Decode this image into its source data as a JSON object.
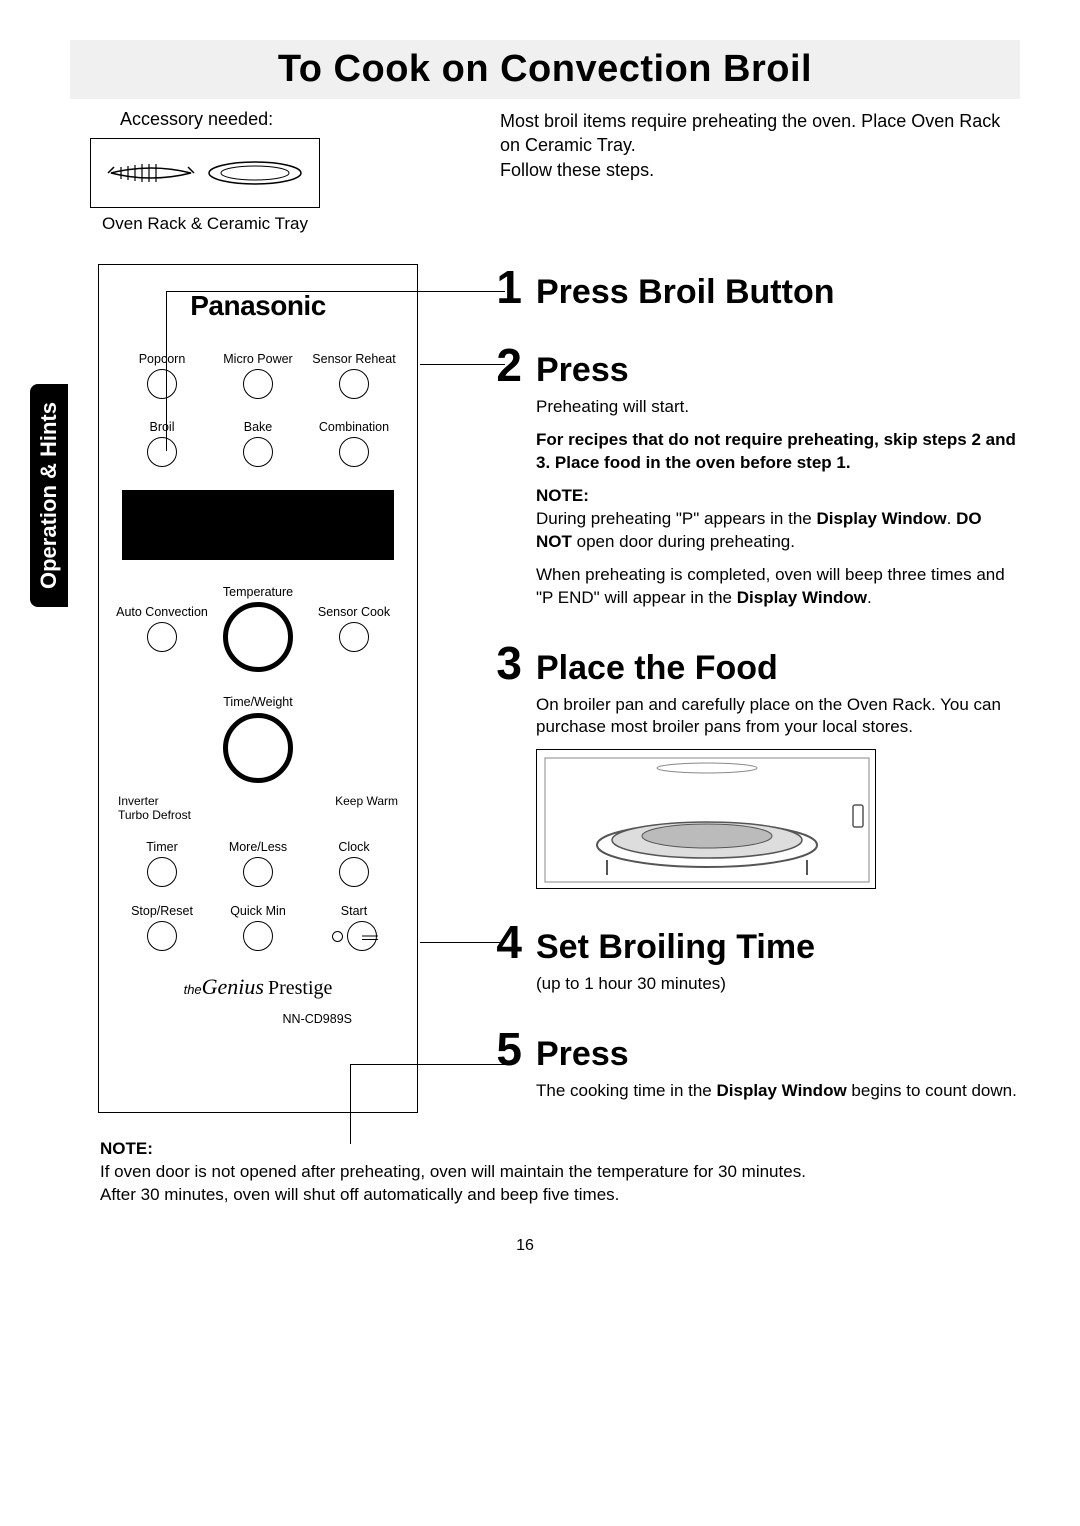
{
  "title": "To Cook on Convection Broil",
  "accessory": {
    "label": "Accessory needed:",
    "caption": "Oven Rack & Ceramic Tray"
  },
  "intro": "Most broil items require preheating the oven. Place Oven Rack on Ceramic Tray.\nFollow these steps.",
  "side_tab": "Operation & Hints",
  "panel": {
    "brand": "Panasonic",
    "buttons_row1": [
      "Popcorn",
      "Micro Power",
      "Sensor Reheat"
    ],
    "buttons_row2": [
      "Broil",
      "Bake",
      "Combination"
    ],
    "dial_row": [
      "Auto Convection",
      "Temperature",
      "Sensor Cook"
    ],
    "tw_label": "Time/Weight",
    "side_left_top": "Inverter",
    "side_left_bottom": "Turbo Defrost",
    "side_right": "Keep Warm",
    "buttons_row3": [
      "Timer",
      "More/Less",
      "Clock"
    ],
    "buttons_row4": [
      "Stop/Reset",
      "Quick Min",
      "Start"
    ],
    "sub_the": "the",
    "sub_genius": "Genius",
    "sub_prestige": "Prestige",
    "model": "NN-CD989S"
  },
  "steps": [
    {
      "num": "1",
      "title": "Press Broil Button",
      "body": []
    },
    {
      "num": "2",
      "title": "Press",
      "body": [
        {
          "text": "Preheating will start."
        },
        {
          "text": "For recipes that do not require preheating, skip steps 2 and 3. Place food in the oven before step 1.",
          "bold": true
        },
        {
          "text": "NOTE:",
          "bold": true,
          "inline_next": true
        },
        {
          "html": "During preheating \"P\" appears in the <b>Display Window</b>. <b>DO NOT</b> open door during preheating."
        },
        {
          "html": "When preheating is completed, oven will beep three times and \"P END\" will appear in the <b>Display Window</b>."
        }
      ]
    },
    {
      "num": "3",
      "title": "Place the Food",
      "body": [
        {
          "text": "On broiler pan and carefully place on the Oven Rack. You can purchase most broiler pans from your local stores."
        }
      ],
      "has_image": true
    },
    {
      "num": "4",
      "title": "Set Broiling Time",
      "body": [
        {
          "text": "(up to 1 hour 30 minutes)"
        }
      ]
    },
    {
      "num": "5",
      "title": "Press",
      "body": [
        {
          "html": "The cooking time in the <b>Display Window</b> begins to count down."
        }
      ]
    }
  ],
  "bottom_note": {
    "heading": "NOTE:",
    "line1": "If oven door is not opened after preheating, oven will maintain the temperature for 30 minutes.",
    "line2": "After 30 minutes, oven will shut off automatically and beep five times."
  },
  "page_number": "16"
}
